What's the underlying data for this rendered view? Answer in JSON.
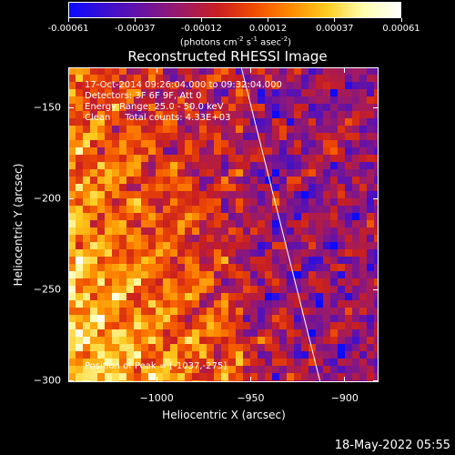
{
  "colorbar": {
    "colors": [
      "#0a0aff",
      "#3c0fd0",
      "#6a13a0",
      "#9a1a6a",
      "#c81e22",
      "#ef4a00",
      "#ff8a00",
      "#ffcc20",
      "#ffffb0",
      "#ffffff"
    ],
    "tick_labels": [
      "-0.00061",
      "-0.00037",
      "-0.00012",
      "0.00012",
      "0.00037",
      "0.00061"
    ],
    "units": {
      "prefix": "(photons cm",
      "exp1": "-2",
      "s": " s",
      "exp2": "-1",
      "asec": " asec",
      "exp3": "-2",
      "suffix": ")"
    }
  },
  "title": "Reconstructed RHESSI Image",
  "info": {
    "line1": "17-Oct-2014 09:26:04.000  to 09:32:04.000",
    "line2": "Detectors: 3F 6F 9F, Att 0",
    "line3": "Energy Range: 25.0 - 50.0 keV",
    "line4": "Clean     Total counts: 4.33E+03",
    "peak": "Position of Peak = [-1037,-275]"
  },
  "chart_data": {
    "type": "heatmap",
    "title": "Reconstructed RHESSI Image",
    "xlabel": "Heliocentric X (arcsec)",
    "ylabel": "Heliocentric Y (arcsec)",
    "xlim": [
      -1047,
      -882
    ],
    "ylim": [
      -301,
      -128
    ],
    "xticks": [
      {
        "value": -1000,
        "label": "−1000"
      },
      {
        "value": -950,
        "label": "−950"
      },
      {
        "value": -900,
        "label": "−900"
      }
    ],
    "yticks": [
      {
        "value": -150,
        "label": "−150"
      },
      {
        "value": -200,
        "label": "−200"
      },
      {
        "value": -250,
        "label": "−250"
      },
      {
        "value": -300,
        "label": "−300"
      }
    ],
    "value_range": [
      -0.00061,
      0.00061
    ],
    "limb_line": {
      "from": [
        -955,
        -128
      ],
      "to": [
        -913,
        -301
      ]
    },
    "peak_position": [
      -1037,
      -275
    ]
  },
  "footer": {
    "timestamp": "18-May-2022 05:55"
  }
}
